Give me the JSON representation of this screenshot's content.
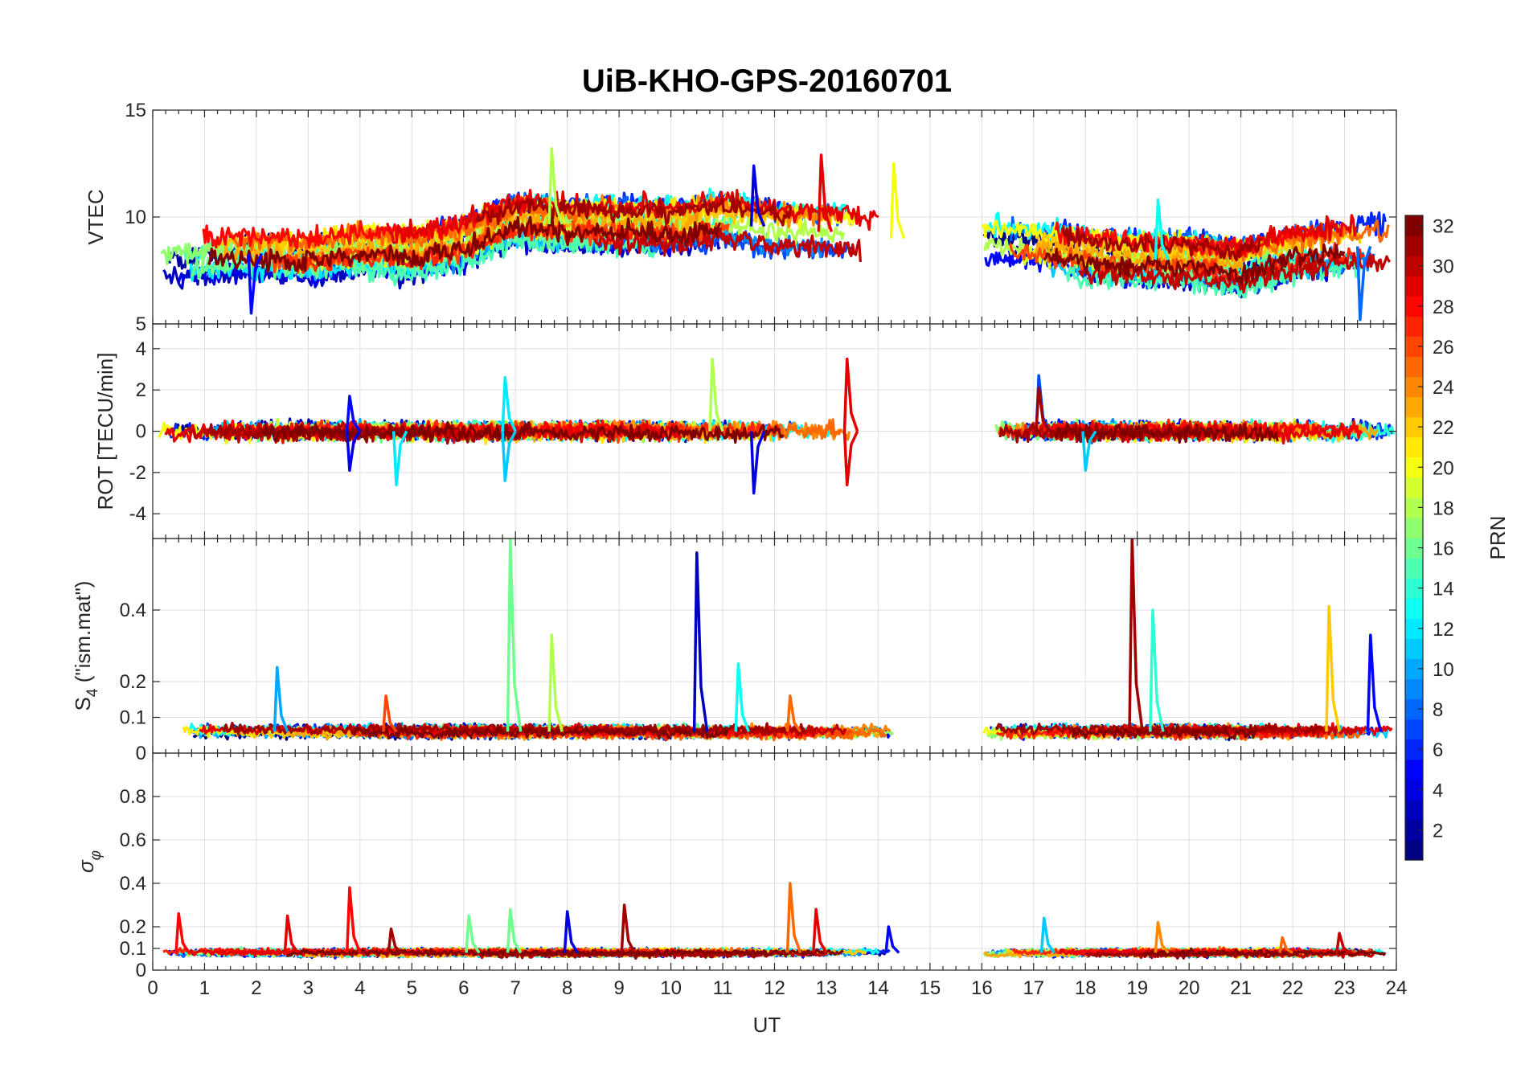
{
  "chart_data": {
    "type": "line",
    "title": "UiB-KHO-GPS-20160701",
    "xlabel": "UT",
    "xlim": [
      0,
      24
    ],
    "x_ticks": [
      0,
      1,
      2,
      3,
      4,
      5,
      6,
      7,
      8,
      9,
      10,
      11,
      12,
      13,
      14,
      15,
      16,
      17,
      18,
      19,
      20,
      21,
      22,
      23,
      24
    ],
    "x_tick_labels": [
      "0",
      "1",
      "2",
      "3",
      "4",
      "5",
      "6",
      "7",
      "8",
      "9",
      "10",
      "11",
      "12",
      "13",
      "14",
      "15",
      "16",
      "17",
      "18",
      "19",
      "20",
      "21",
      "22",
      "23",
      "24"
    ],
    "data_gap": [
      14.3,
      16.0
    ],
    "grid": true,
    "panels": [
      {
        "id": "vtec",
        "ylabel": "VTEC",
        "ylim": [
          5,
          15
        ],
        "y_ticks": [
          5,
          10,
          15
        ],
        "y_tick_labels": [
          "5",
          "10",
          "15"
        ],
        "baseline_segments": [
          {
            "x": [
              0,
              1,
              2,
              3,
              4,
              5,
              6,
              7,
              8,
              9,
              10,
              11,
              12,
              13,
              14.3
            ],
            "y": [
              8.0,
              8.2,
              8.3,
              8.1,
              8.5,
              8.3,
              8.8,
              9.8,
              9.6,
              9.6,
              9.5,
              9.8,
              9.4,
              9.3,
              9.0
            ]
          },
          {
            "x": [
              16,
              17,
              18,
              19,
              20,
              21,
              22,
              23,
              24
            ],
            "y": [
              8.7,
              8.5,
              8.2,
              8.0,
              8.0,
              7.6,
              8.3,
              8.6,
              8.7
            ]
          }
        ],
        "spread": 1.0,
        "noise": 0.45,
        "spikes": [
          {
            "x": 7.7,
            "y": 13.2,
            "prn": 18
          },
          {
            "x": 11.6,
            "y": 12.4,
            "prn": 4
          },
          {
            "x": 12.9,
            "y": 12.9,
            "prn": 29
          },
          {
            "x": 14.3,
            "y": 12.5,
            "prn": 20
          },
          {
            "x": 19.4,
            "y": 10.8,
            "prn": 13
          },
          {
            "x": 1.9,
            "y": 5.5,
            "prn": 5
          },
          {
            "x": 23.3,
            "y": 5.2,
            "prn": 8
          }
        ]
      },
      {
        "id": "rot",
        "ylabel": "ROT [TECU/min]",
        "ylim": [
          -5.2,
          5.2
        ],
        "y_ticks": [
          -4,
          -2,
          0,
          2,
          4
        ],
        "y_tick_labels": [
          "-4",
          "-2",
          "0",
          "2",
          "4"
        ],
        "baseline_segments": [
          {
            "x": [
              0,
              14.3
            ],
            "y": [
              0,
              0
            ]
          },
          {
            "x": [
              16,
              24
            ],
            "y": [
              0,
              0
            ]
          }
        ],
        "spread": 0.1,
        "noise": 0.35,
        "spikes": [
          {
            "x": 3.8,
            "y": 1.7,
            "prn": 5
          },
          {
            "x": 3.8,
            "y": -1.9,
            "prn": 4
          },
          {
            "x": 4.7,
            "y": -2.6,
            "prn": 12
          },
          {
            "x": 6.8,
            "y": 2.6,
            "prn": 12
          },
          {
            "x": 6.8,
            "y": -2.4,
            "prn": 11
          },
          {
            "x": 10.8,
            "y": 3.5,
            "prn": 18
          },
          {
            "x": 11.6,
            "y": -3.0,
            "prn": 4
          },
          {
            "x": 13.4,
            "y": 3.5,
            "prn": 29
          },
          {
            "x": 13.4,
            "y": -2.6,
            "prn": 29
          },
          {
            "x": 17.1,
            "y": 2.7,
            "prn": 7
          },
          {
            "x": 17.1,
            "y": 2.1,
            "prn": 31
          },
          {
            "x": 18.0,
            "y": -1.9,
            "prn": 11
          }
        ]
      },
      {
        "id": "s4",
        "ylabel": "S4 (\"ism.mat\")",
        "ylim": [
          0,
          0.6
        ],
        "y_ticks": [
          0,
          0.1,
          0.2,
          0.4
        ],
        "y_tick_labels": [
          "0",
          "0.1",
          "0.2",
          "0.4"
        ],
        "baseline_segments": [
          {
            "x": [
              0,
              14.3
            ],
            "y": [
              0.06,
              0.06
            ]
          },
          {
            "x": [
              16,
              24
            ],
            "y": [
              0.06,
              0.06
            ]
          }
        ],
        "spread": 0.008,
        "noise": 0.012,
        "spikes": [
          {
            "x": 2.4,
            "y": 0.24,
            "prn": 10
          },
          {
            "x": 4.5,
            "y": 0.16,
            "prn": 26
          },
          {
            "x": 6.9,
            "y": 0.6,
            "prn": 16
          },
          {
            "x": 7.7,
            "y": 0.33,
            "prn": 18
          },
          {
            "x": 10.5,
            "y": 0.56,
            "prn": 3
          },
          {
            "x": 11.3,
            "y": 0.25,
            "prn": 13
          },
          {
            "x": 12.3,
            "y": 0.16,
            "prn": 25
          },
          {
            "x": 18.9,
            "y": 0.6,
            "prn": 31
          },
          {
            "x": 19.3,
            "y": 0.4,
            "prn": 14
          },
          {
            "x": 22.7,
            "y": 0.41,
            "prn": 22
          },
          {
            "x": 23.5,
            "y": 0.33,
            "prn": 5
          }
        ]
      },
      {
        "id": "sigma",
        "ylabel": "σφ",
        "ylim": [
          0,
          1
        ],
        "y_ticks": [
          0,
          0.1,
          0.2,
          0.4,
          0.6,
          0.8
        ],
        "y_tick_labels": [
          "0",
          "0.1",
          "0.2",
          "0.4",
          "0.6",
          "0.8"
        ],
        "baseline_segments": [
          {
            "x": [
              0,
              14.3
            ],
            "y": [
              0.08,
              0.08
            ]
          },
          {
            "x": [
              16,
              24
            ],
            "y": [
              0.08,
              0.08
            ]
          }
        ],
        "spread": 0.008,
        "noise": 0.012,
        "spikes": [
          {
            "x": 0.5,
            "y": 0.26,
            "prn": 28
          },
          {
            "x": 2.6,
            "y": 0.25,
            "prn": 29
          },
          {
            "x": 3.8,
            "y": 0.38,
            "prn": 28
          },
          {
            "x": 4.6,
            "y": 0.19,
            "prn": 31
          },
          {
            "x": 6.1,
            "y": 0.25,
            "prn": 16
          },
          {
            "x": 6.9,
            "y": 0.28,
            "prn": 16
          },
          {
            "x": 8.0,
            "y": 0.27,
            "prn": 4
          },
          {
            "x": 9.1,
            "y": 0.3,
            "prn": 31
          },
          {
            "x": 12.3,
            "y": 0.4,
            "prn": 25
          },
          {
            "x": 12.8,
            "y": 0.28,
            "prn": 29
          },
          {
            "x": 14.2,
            "y": 0.2,
            "prn": 5
          },
          {
            "x": 17.2,
            "y": 0.24,
            "prn": 11
          },
          {
            "x": 19.4,
            "y": 0.22,
            "prn": 24
          },
          {
            "x": 21.8,
            "y": 0.15,
            "prn": 25
          },
          {
            "x": 22.9,
            "y": 0.17,
            "prn": 30
          }
        ]
      }
    ],
    "colorbar": {
      "label": "PRN",
      "colormap": "jet",
      "range": [
        1,
        32
      ],
      "ticks": [
        2,
        4,
        6,
        8,
        10,
        12,
        14,
        16,
        18,
        20,
        22,
        24,
        26,
        28,
        30,
        32
      ],
      "tick_labels": [
        "2",
        "4",
        "6",
        "8",
        "10",
        "12",
        "14",
        "16",
        "18",
        "20",
        "22",
        "24",
        "26",
        "28",
        "30",
        "32"
      ]
    },
    "series": [
      {
        "prn": 1
      },
      {
        "prn": 2
      },
      {
        "prn": 3
      },
      {
        "prn": 4
      },
      {
        "prn": 5
      },
      {
        "prn": 6
      },
      {
        "prn": 7
      },
      {
        "prn": 8
      },
      {
        "prn": 9
      },
      {
        "prn": 10
      },
      {
        "prn": 11
      },
      {
        "prn": 12
      },
      {
        "prn": 13
      },
      {
        "prn": 14
      },
      {
        "prn": 15
      },
      {
        "prn": 16
      },
      {
        "prn": 17
      },
      {
        "prn": 18
      },
      {
        "prn": 19
      },
      {
        "prn": 20
      },
      {
        "prn": 21
      },
      {
        "prn": 22
      },
      {
        "prn": 23
      },
      {
        "prn": 24
      },
      {
        "prn": 25
      },
      {
        "prn": 26
      },
      {
        "prn": 27
      },
      {
        "prn": 28
      },
      {
        "prn": 29
      },
      {
        "prn": 30
      },
      {
        "prn": 31
      },
      {
        "prn": 32
      }
    ]
  }
}
